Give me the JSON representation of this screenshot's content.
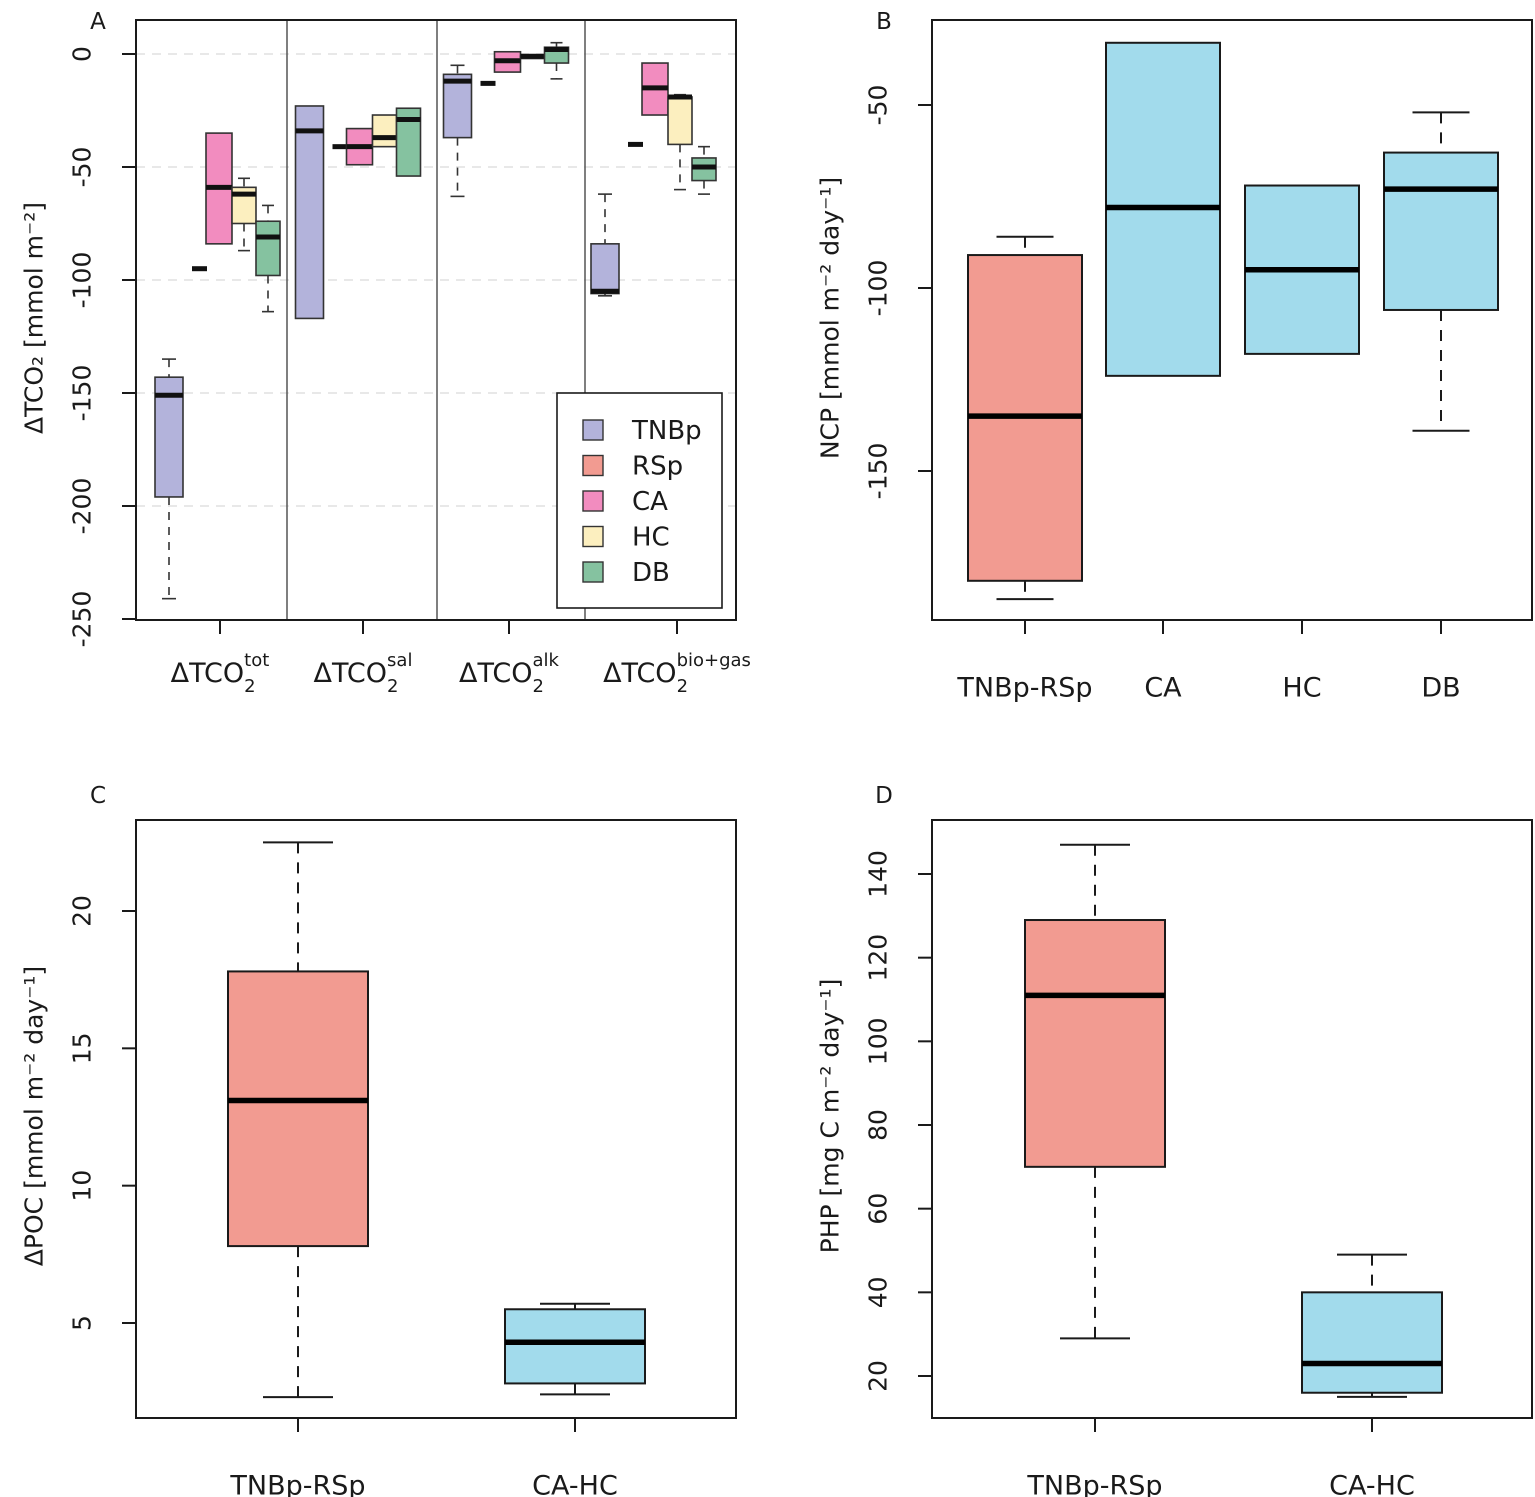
{
  "colors": {
    "TNBp": "#b3b3db",
    "RSp": "#f29b91",
    "CA": "#f28cbf",
    "HC": "#fcefbf",
    "DB": "#85c2a0",
    "blue": "#a2dbec"
  },
  "chart_data": [
    {
      "panel": "A",
      "type": "box",
      "ylabel": "ΔTCO₂ [mmol m⁻²]",
      "ylim": [
        -250,
        15
      ],
      "yticks": [
        0,
        -50,
        -100,
        -150,
        -200,
        -250
      ],
      "ytick_labels": [
        "0",
        "-50",
        "-100",
        "-150",
        "-200",
        "-250"
      ],
      "grid": true,
      "legend": {
        "position": "bottom-right",
        "entries": [
          {
            "name": "TNBp",
            "color_key": "TNBp"
          },
          {
            "name": "RSp",
            "color_key": "RSp"
          },
          {
            "name": "CA",
            "color_key": "CA"
          },
          {
            "name": "HC",
            "color_key": "HC"
          },
          {
            "name": "DB",
            "color_key": "DB"
          }
        ]
      },
      "groups": [
        {
          "label_base": "ΔTCO",
          "label_sub": "2",
          "label_sup": "tot",
          "boxes": [
            {
              "series": "TNBp",
              "min": -241,
              "q1": -196,
              "median": -151,
              "q3": -143,
              "max": -135
            },
            {
              "series": "RSp",
              "min": -95,
              "q1": -95,
              "median": -95,
              "q3": -95,
              "max": -95
            },
            {
              "series": "CA",
              "min": -84,
              "q1": -84,
              "median": -59,
              "q3": -35,
              "max": -35
            },
            {
              "series": "HC",
              "min": -87,
              "q1": -75,
              "median": -62,
              "q3": -59,
              "max": -55
            },
            {
              "series": "DB",
              "min": -114,
              "q1": -98,
              "median": -81,
              "q3": -74,
              "max": -67
            }
          ]
        },
        {
          "label_base": "ΔTCO",
          "label_sub": "2",
          "label_sup": "sal",
          "boxes": [
            {
              "series": "TNBp",
              "min": -117,
              "q1": -117,
              "median": -34,
              "q3": -23,
              "max": -23
            },
            {
              "series": "RSp",
              "min": -41,
              "q1": -41,
              "median": -41,
              "q3": -41,
              "max": -41
            },
            {
              "series": "CA",
              "min": -49,
              "q1": -49,
              "median": -41,
              "q3": -33,
              "max": -33
            },
            {
              "series": "HC",
              "min": -41,
              "q1": -41,
              "median": -37,
              "q3": -27,
              "max": -27
            },
            {
              "series": "DB",
              "min": -54,
              "q1": -54,
              "median": -29,
              "q3": -24,
              "max": -24
            }
          ]
        },
        {
          "label_base": "ΔTCO",
          "label_sub": "2",
          "label_sup": "alk",
          "boxes": [
            {
              "series": "TNBp",
              "min": -63,
              "q1": -37,
              "median": -12,
              "q3": -9,
              "max": -5
            },
            {
              "series": "RSp",
              "min": -13,
              "q1": -13,
              "median": -13,
              "q3": -13,
              "max": -13
            },
            {
              "series": "CA",
              "min": -8,
              "q1": -8,
              "median": -3,
              "q3": 1,
              "max": 1
            },
            {
              "series": "HC",
              "min": -2,
              "q1": -2,
              "median": -1,
              "q3": -1,
              "max": -1
            },
            {
              "series": "DB",
              "min": -11,
              "q1": -4,
              "median": 2,
              "q3": 3,
              "max": 5
            }
          ]
        },
        {
          "label_base": "ΔTCO",
          "label_sub": "2",
          "label_sup": "bio+gas",
          "boxes": [
            {
              "series": "TNBp",
              "min": -107,
              "q1": -106,
              "median": -105,
              "q3": -84,
              "max": -62
            },
            {
              "series": "RSp",
              "min": -40,
              "q1": -40,
              "median": -40,
              "q3": -40,
              "max": -40
            },
            {
              "series": "CA",
              "min": -27,
              "q1": -27,
              "median": -15,
              "q3": -4,
              "max": -4
            },
            {
              "series": "HC",
              "min": -60,
              "q1": -40,
              "median": -19,
              "q3": -19,
              "max": -18
            },
            {
              "series": "DB",
              "min": -62,
              "q1": -56,
              "median": -50,
              "q3": -46,
              "max": -41
            }
          ]
        }
      ]
    },
    {
      "panel": "B",
      "type": "box",
      "ylabel": "NCP [mmol m⁻² day⁻¹]",
      "ylim": [
        -190,
        -33
      ],
      "yticks": [
        -50,
        -100,
        -150
      ],
      "ytick_labels": [
        "-50",
        "-100",
        "-150"
      ],
      "categories": [
        "TNBp-RSp",
        "CA",
        "HC",
        "DB"
      ],
      "boxes": [
        {
          "category": "TNBp-RSp",
          "color_key": "RSp",
          "min": -185,
          "q1": -180,
          "median": -135,
          "q3": -91,
          "max": -86
        },
        {
          "category": "CA",
          "color_key": "blue",
          "min": -124,
          "q1": -124,
          "median": -78,
          "q3": -33,
          "max": -33
        },
        {
          "category": "HC",
          "color_key": "blue",
          "min": -118,
          "q1": -118,
          "median": -95,
          "q3": -72,
          "max": -72
        },
        {
          "category": "DB",
          "color_key": "blue",
          "min": -139,
          "q1": -106,
          "median": -73,
          "q3": -63,
          "max": -52
        }
      ]
    },
    {
      "panel": "C",
      "type": "box",
      "ylabel": "ΔPOC [mmol m⁻² day⁻¹]",
      "ylim": [
        1.5,
        23.3
      ],
      "yticks": [
        5,
        10,
        15,
        20
      ],
      "ytick_labels": [
        "5",
        "10",
        "15",
        "20"
      ],
      "categories": [
        "TNBp-RSp",
        "CA-HC"
      ],
      "boxes": [
        {
          "category": "TNBp-RSp",
          "color_key": "RSp",
          "min": 2.3,
          "q1": 7.8,
          "median": 13.1,
          "q3": 17.8,
          "max": 22.5
        },
        {
          "category": "CA-HC",
          "color_key": "blue",
          "min": 2.4,
          "q1": 2.8,
          "median": 4.3,
          "q3": 5.5,
          "max": 5.7
        }
      ]
    },
    {
      "panel": "D",
      "type": "box",
      "ylabel": "PHP [mg C m⁻² day⁻¹]",
      "ylim": [
        10,
        152
      ],
      "yticks": [
        20,
        40,
        60,
        80,
        100,
        120,
        140
      ],
      "ytick_labels": [
        "20",
        "40",
        "60",
        "80",
        "100",
        "120",
        "140"
      ],
      "categories": [
        "TNBp-RSp",
        "CA-HC"
      ],
      "boxes": [
        {
          "category": "TNBp-RSp",
          "color_key": "RSp",
          "min": 29,
          "q1": 70,
          "median": 111,
          "q3": 129,
          "max": 147
        },
        {
          "category": "CA-HC",
          "color_key": "blue",
          "min": 15,
          "q1": 16,
          "median": 23,
          "q3": 40,
          "max": 49
        }
      ]
    }
  ]
}
